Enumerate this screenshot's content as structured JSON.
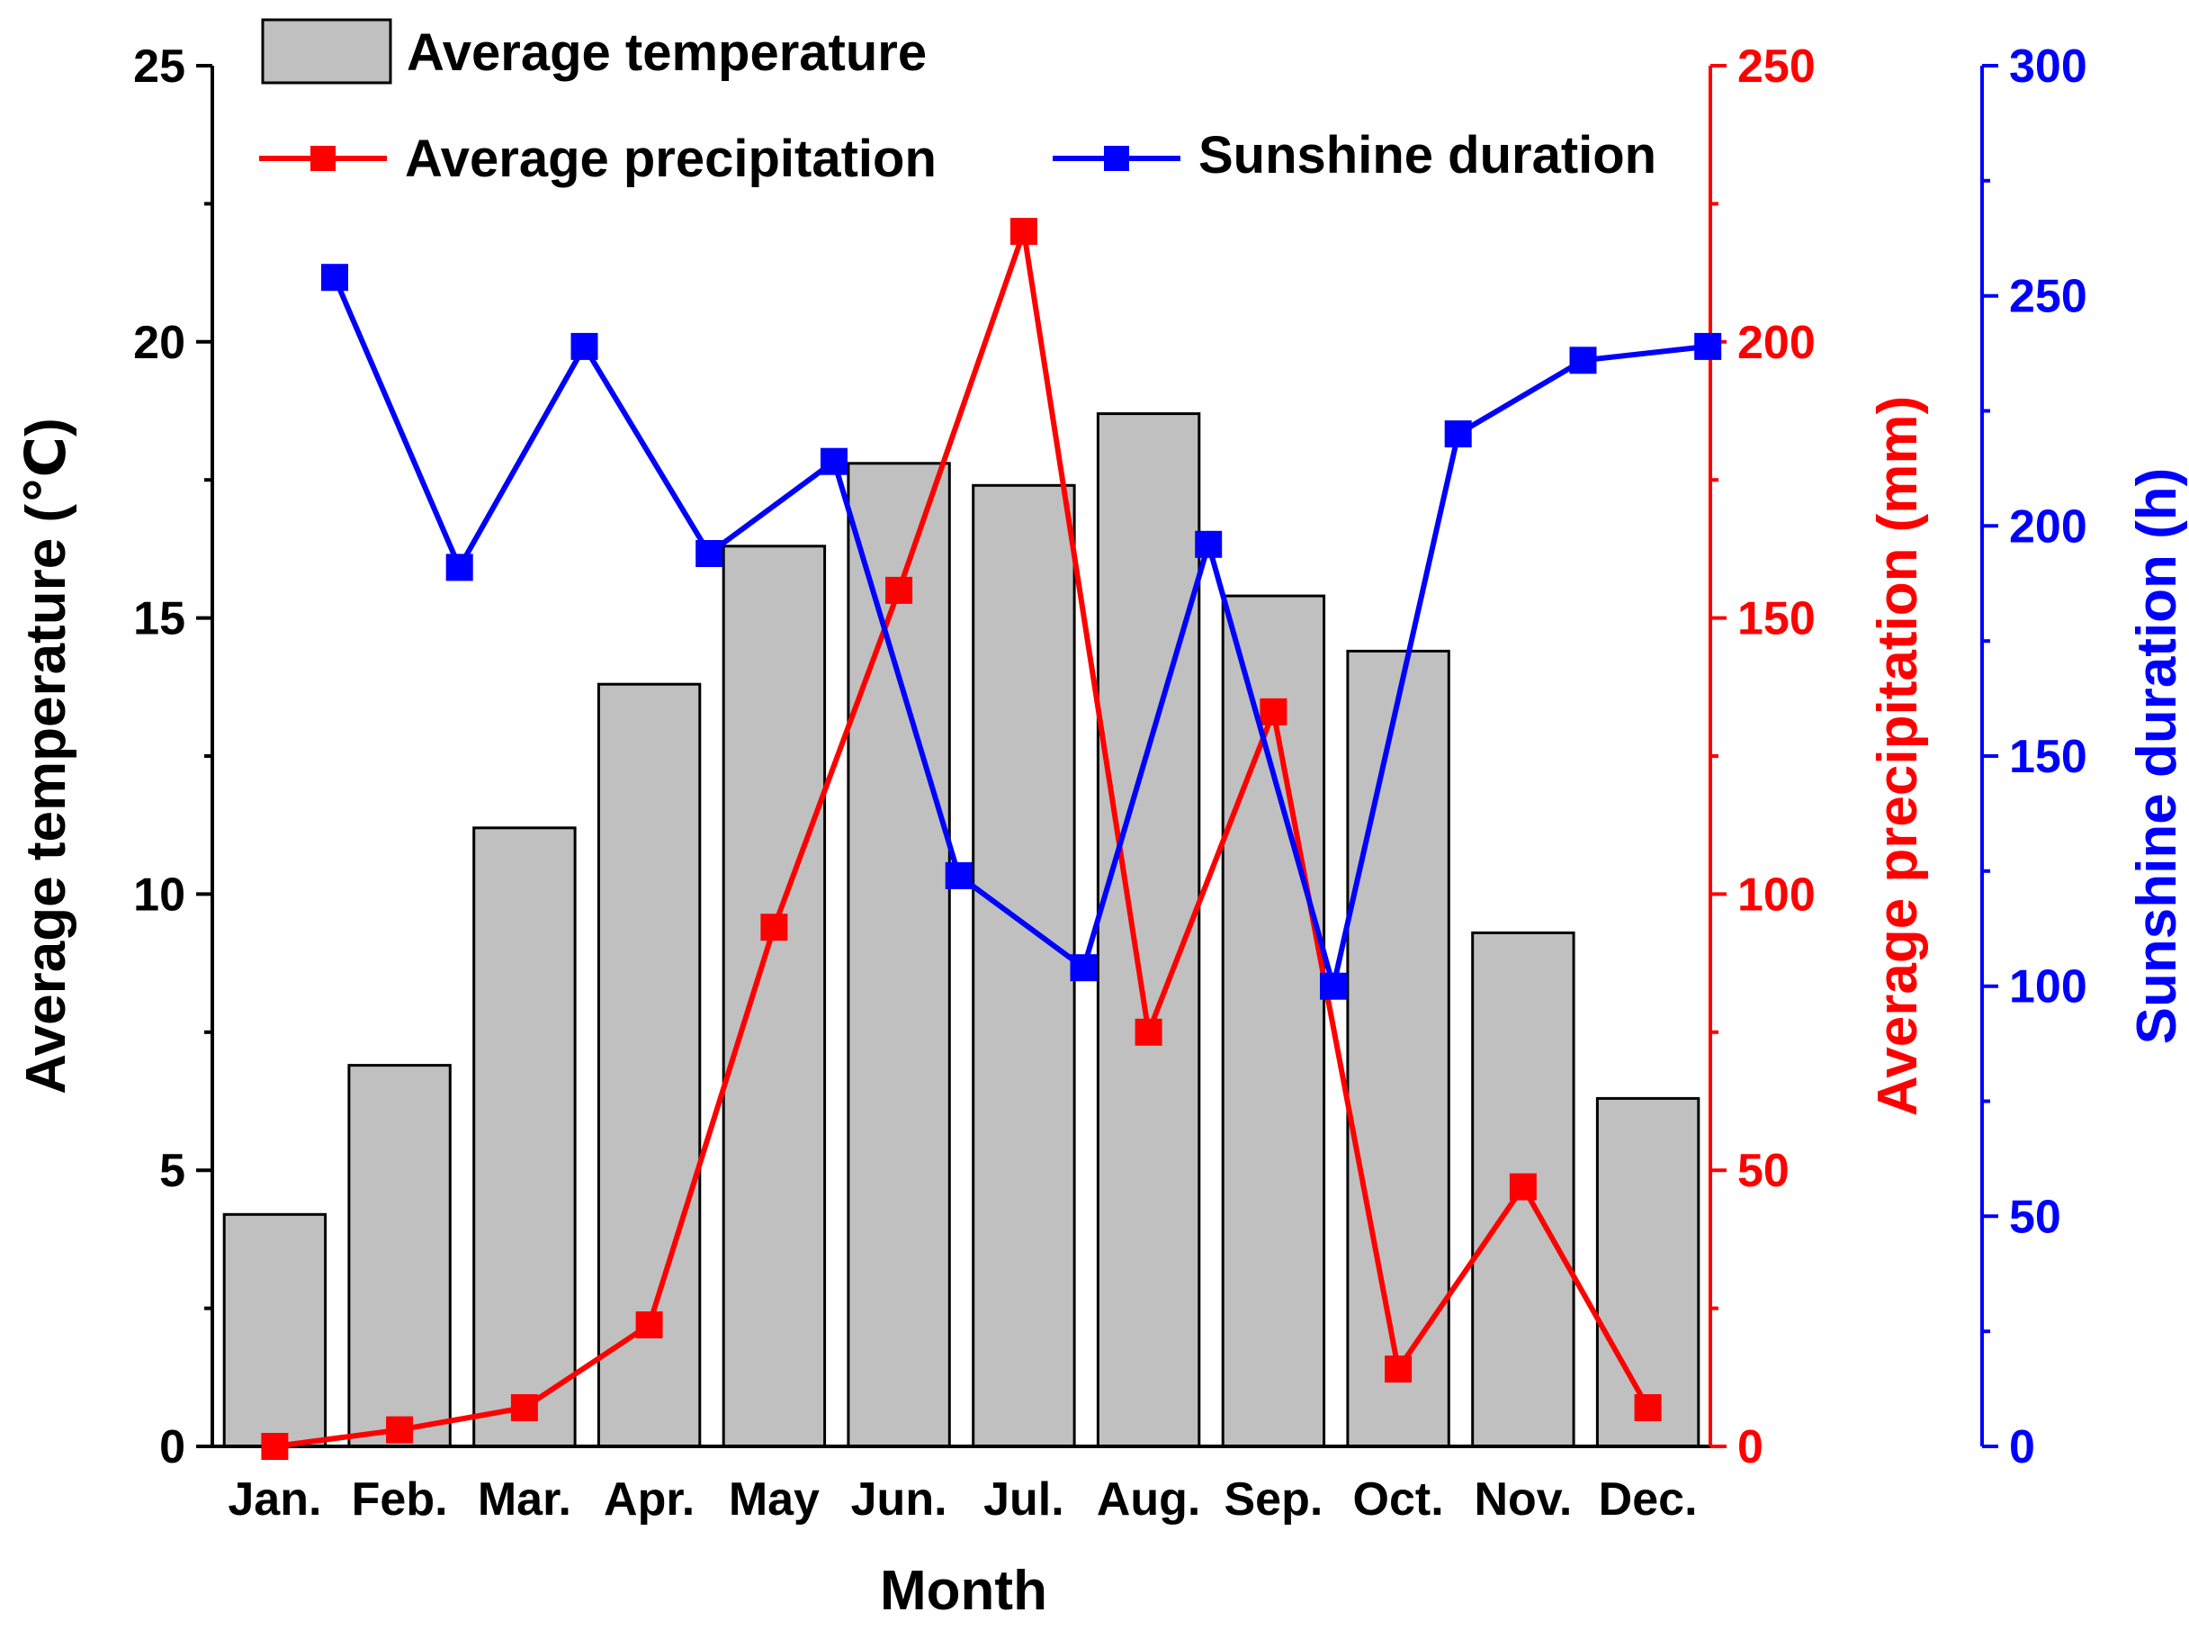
{
  "chart_data": {
    "type": "bar",
    "title": "",
    "xlabel": "Month",
    "categories": [
      "Jan.",
      "Feb.",
      "Mar.",
      "Apr.",
      "May",
      "Jun.",
      "Jul.",
      "Aug.",
      "Sep.",
      "Oct.",
      "Nov.",
      "Dec."
    ],
    "grid": false,
    "legend_position": "top",
    "series": [
      {
        "name": "Average temperature",
        "kind": "bar",
        "axis": "left",
        "values": [
          4.2,
          6.9,
          11.2,
          13.8,
          16.3,
          17.8,
          17.4,
          18.7,
          15.4,
          14.4,
          9.3,
          6.3
        ]
      },
      {
        "name": "Average precipitation",
        "kind": "line",
        "axis": "right1",
        "values": [
          0,
          3,
          7,
          22,
          94,
          155,
          220,
          75,
          133,
          14,
          47,
          7
        ]
      },
      {
        "name": "Sunshine duration",
        "kind": "line",
        "axis": "right2",
        "values": [
          254,
          191,
          239,
          194,
          214,
          124,
          104,
          196,
          100,
          220,
          236,
          239
        ]
      }
    ],
    "axes": {
      "left": {
        "label": "Average temperature (℃)",
        "ylim": [
          0,
          25
        ],
        "ticks": [
          "0",
          "5",
          "10",
          "15",
          "20",
          "25"
        ]
      },
      "right1": {
        "label": "Average precipitation (mm)",
        "ylim": [
          0,
          250
        ],
        "ticks": [
          "0",
          "50",
          "100",
          "150",
          "200",
          "250"
        ]
      },
      "right2": {
        "label": "Sunshine duration (h)",
        "ylim": [
          0,
          300
        ],
        "ticks": [
          "0",
          "50",
          "100",
          "150",
          "200",
          "250",
          "300"
        ]
      }
    },
    "colors": {
      "bar_fill": "#c0c0c0",
      "left_axis": "#000000",
      "precipitation": "#ff0000",
      "sunshine": "#0000ff"
    }
  }
}
